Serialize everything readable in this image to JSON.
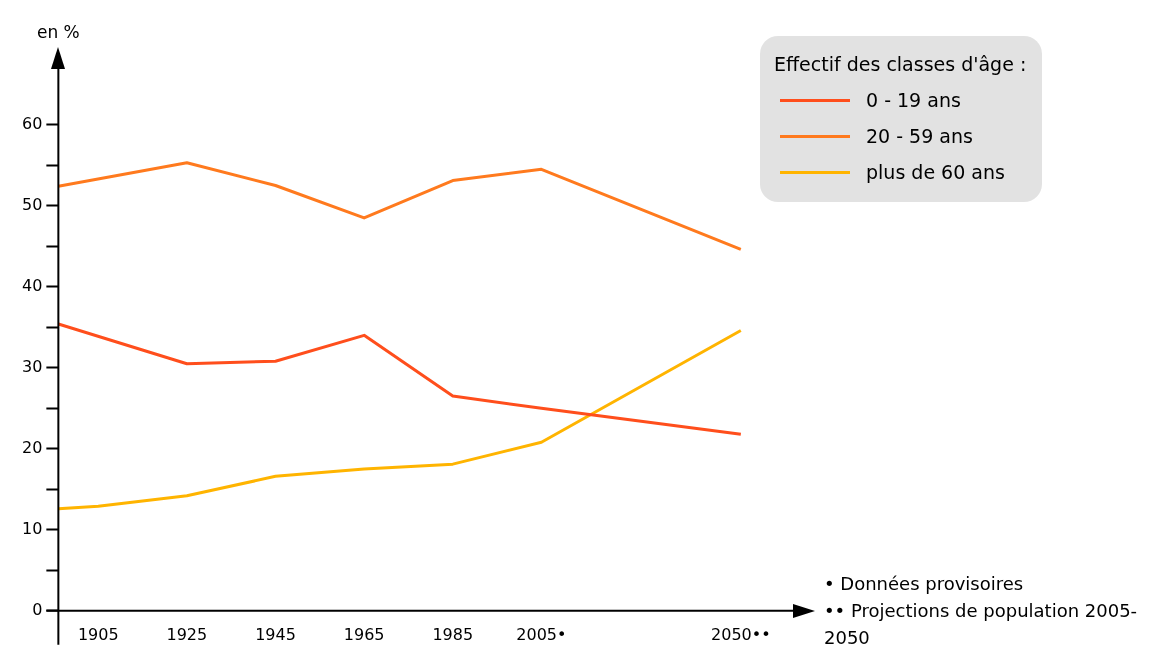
{
  "chart_data": {
    "type": "line",
    "ylabel": "en %",
    "legend_title": "Effectif des classes d'âge :",
    "legend": "right",
    "series": [
      {
        "name": "0 - 19 ans",
        "color": "#ff4e1c",
        "x": [
          1896,
          1925,
          1945,
          1965,
          1985,
          2005,
          2050
        ],
        "values": [
          35.4,
          30.5,
          30.8,
          34.0,
          26.5,
          25.0,
          21.8
        ]
      },
      {
        "name": "20 - 59 ans",
        "color": "#ff7a1e",
        "x": [
          1896,
          1925,
          1945,
          1965,
          1985,
          2005,
          2050
        ],
        "values": [
          52.4,
          55.3,
          52.5,
          48.5,
          53.1,
          54.5,
          44.6
        ]
      },
      {
        "name": "plus de 60 ans",
        "color": "#ffb400",
        "x": [
          1896,
          1905,
          1925,
          1945,
          1965,
          1985,
          2005,
          2050
        ],
        "values": [
          12.6,
          12.9,
          14.2,
          16.6,
          17.5,
          18.1,
          20.8,
          34.6
        ]
      }
    ],
    "xlim": [
      1896,
      2062
    ],
    "xticks": [
      1905,
      1925,
      1945,
      1965,
      1985,
      {
        "value": 2005,
        "label": "2005•"
      },
      {
        "value": 2050,
        "label": "2050••"
      }
    ],
    "ylim": [
      0,
      67
    ],
    "yticks": [
      0,
      {
        "value": 5,
        "label": null
      },
      10,
      {
        "value": 15,
        "label": null
      },
      20,
      {
        "value": 25,
        "label": null
      },
      30,
      {
        "value": 35,
        "label": null
      },
      40,
      {
        "value": 45,
        "label": null
      },
      50,
      {
        "value": 55,
        "label": null
      },
      60
    ],
    "grid": false,
    "marker": "none",
    "line_style": "solid",
    "annotations": [
      "• Données provisoires",
      "•• Projections de population 2005-2050"
    ]
  }
}
